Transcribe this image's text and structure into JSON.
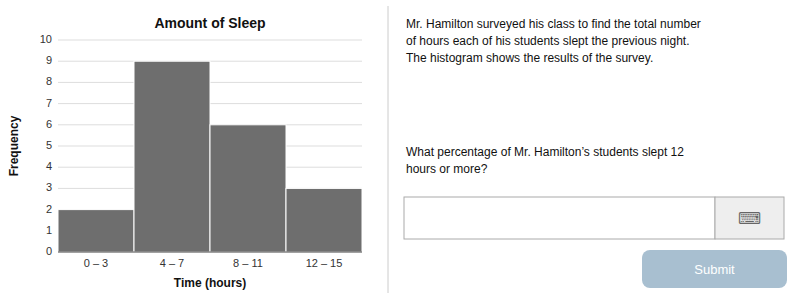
{
  "chart_data": {
    "type": "bar",
    "title": "Amount of Sleep",
    "xlabel": "Time (hours)",
    "ylabel": "Frequency",
    "categories": [
      "0 – 3",
      "4 – 7",
      "8 – 11",
      "12 – 15"
    ],
    "values": [
      2,
      9,
      6,
      3
    ],
    "color": "#6e6e6e",
    "ylim": [
      0,
      10
    ],
    "yticks": [
      0,
      1,
      2,
      3,
      4,
      5,
      6,
      7,
      8,
      9,
      10
    ],
    "grid": true,
    "annotations": [
      "Mr. Hamilton surveyed his class to find the total number\nof hours each of his students slept the previous night.\nThe histogram shows the results of the survey.",
      "What percentage of Mr. Hamilton’s students slept 12\nhours or more?",
      "⌨",
      "Submit"
    ]
  }
}
